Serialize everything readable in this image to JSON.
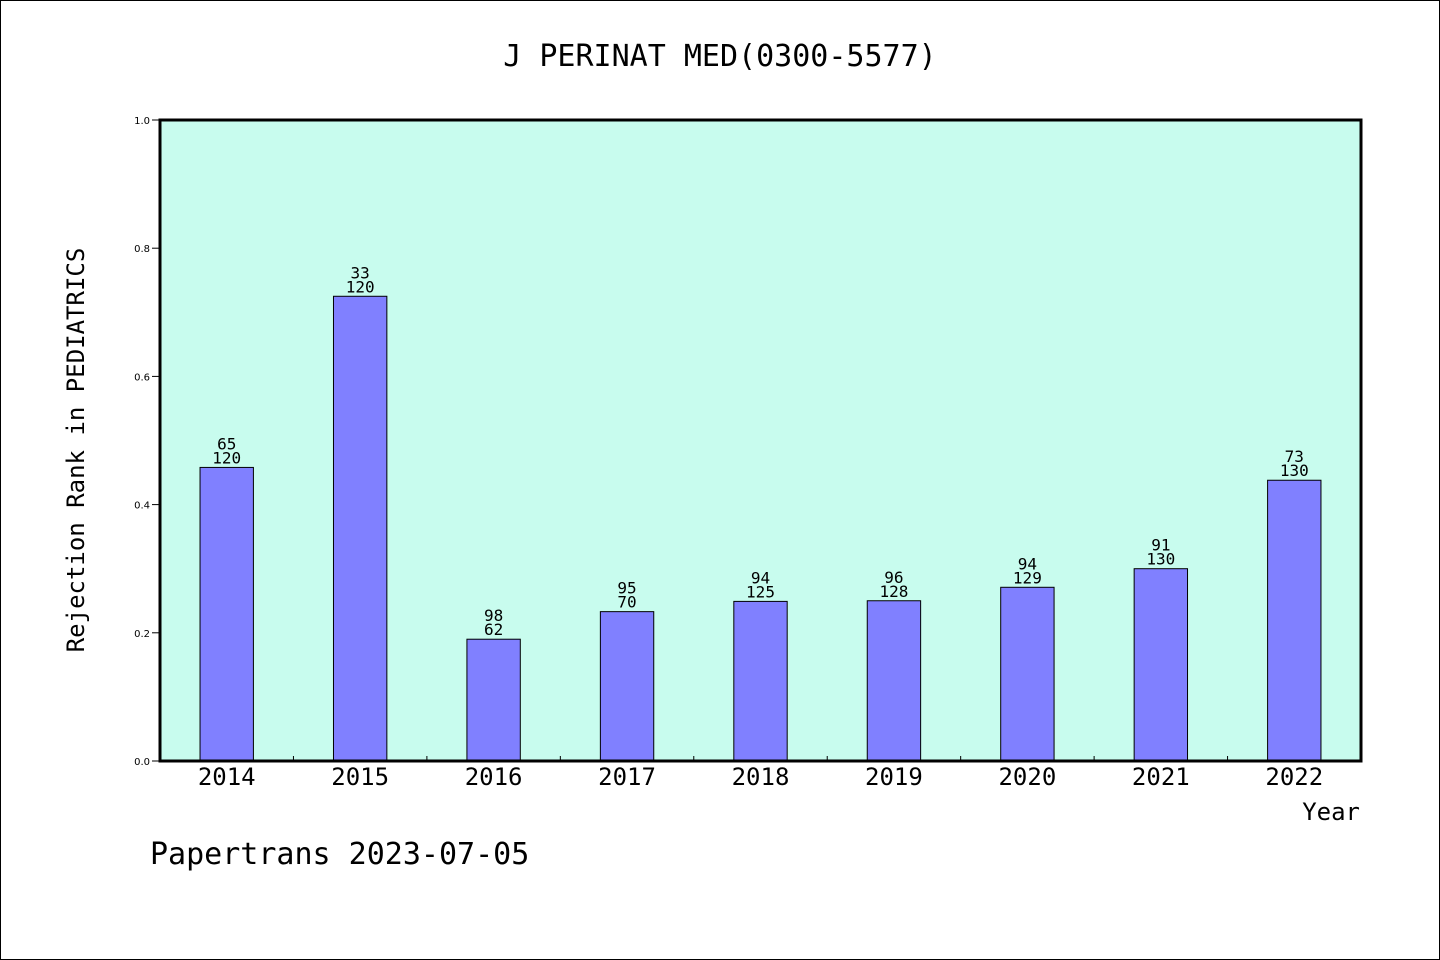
{
  "chart_data": {
    "type": "bar",
    "title": "J PERINAT MED(0300-5577)",
    "xlabel": "Year",
    "ylabel": "Rejection Rank in PEDIATRICS",
    "ylim": [
      0,
      1.0
    ],
    "yticks": [
      "0.0",
      "0.2",
      "0.4",
      "0.6",
      "0.8",
      "1.0"
    ],
    "grid": false,
    "categories": [
      "2014",
      "2015",
      "2016",
      "2017",
      "2018",
      "2019",
      "2020",
      "2021",
      "2022"
    ],
    "values": [
      0.458,
      0.725,
      0.19,
      0.233,
      0.249,
      0.25,
      0.271,
      0.3,
      0.438
    ],
    "labels_top": [
      "65",
      "33",
      "98",
      "95",
      "94",
      "96",
      "94",
      "91",
      "73"
    ],
    "labels_bottom": [
      "120",
      "120",
      "62",
      "70",
      "125",
      "128",
      "129",
      "130",
      "130"
    ],
    "colors": {
      "plot_bg": "#c8fcee",
      "bar": "#8080ff",
      "edge": "#000000"
    }
  },
  "footer": "Papertrans 2023-07-05"
}
